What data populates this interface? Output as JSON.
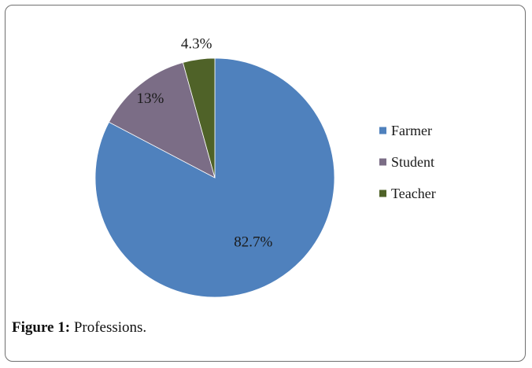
{
  "figure": {
    "caption_prefix": "Figure 1:",
    "caption_text": " Professions."
  },
  "chart_data": {
    "type": "pie",
    "categories": [
      "Farmer",
      "Student",
      "Teacher"
    ],
    "values": [
      82.7,
      13,
      4.3
    ],
    "data_labels": [
      "82.7%",
      "13%",
      "4.3%"
    ],
    "colors": [
      "#4f81bd",
      "#7b6d86",
      "#4f6228"
    ],
    "start_angle_deg": 0,
    "direction": "clockwise",
    "legend_position": "right"
  }
}
